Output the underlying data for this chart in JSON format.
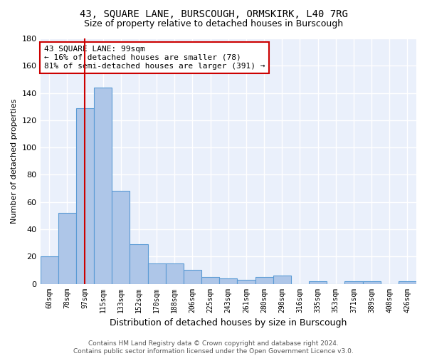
{
  "title": "43, SQUARE LANE, BURSCOUGH, ORMSKIRK, L40 7RG",
  "subtitle": "Size of property relative to detached houses in Burscough",
  "xlabel": "Distribution of detached houses by size in Burscough",
  "ylabel": "Number of detached properties",
  "categories": [
    "60sqm",
    "78sqm",
    "97sqm",
    "115sqm",
    "133sqm",
    "152sqm",
    "170sqm",
    "188sqm",
    "206sqm",
    "225sqm",
    "243sqm",
    "261sqm",
    "280sqm",
    "298sqm",
    "316sqm",
    "335sqm",
    "353sqm",
    "371sqm",
    "389sqm",
    "408sqm",
    "426sqm"
  ],
  "values": [
    20,
    52,
    129,
    144,
    68,
    29,
    15,
    15,
    10,
    5,
    4,
    3,
    5,
    6,
    0,
    2,
    0,
    2,
    2,
    0,
    2
  ],
  "bar_color": "#aec6e8",
  "bar_edge_color": "#5b9bd5",
  "annotation_box_line1": "43 SQUARE LANE: 99sqm",
  "annotation_box_line2": "← 16% of detached houses are smaller (78)",
  "annotation_box_line3": "81% of semi-detached houses are larger (391) →",
  "annotation_box_color": "white",
  "annotation_box_edge_color": "#cc0000",
  "vline_color": "#cc0000",
  "vline_x_index": 2,
  "ylim": [
    0,
    180
  ],
  "yticks": [
    0,
    20,
    40,
    60,
    80,
    100,
    120,
    140,
    160,
    180
  ],
  "bg_color": "#eaf0fb",
  "grid_color": "white",
  "footer_text": "Contains HM Land Registry data © Crown copyright and database right 2024.\nContains public sector information licensed under the Open Government Licence v3.0."
}
